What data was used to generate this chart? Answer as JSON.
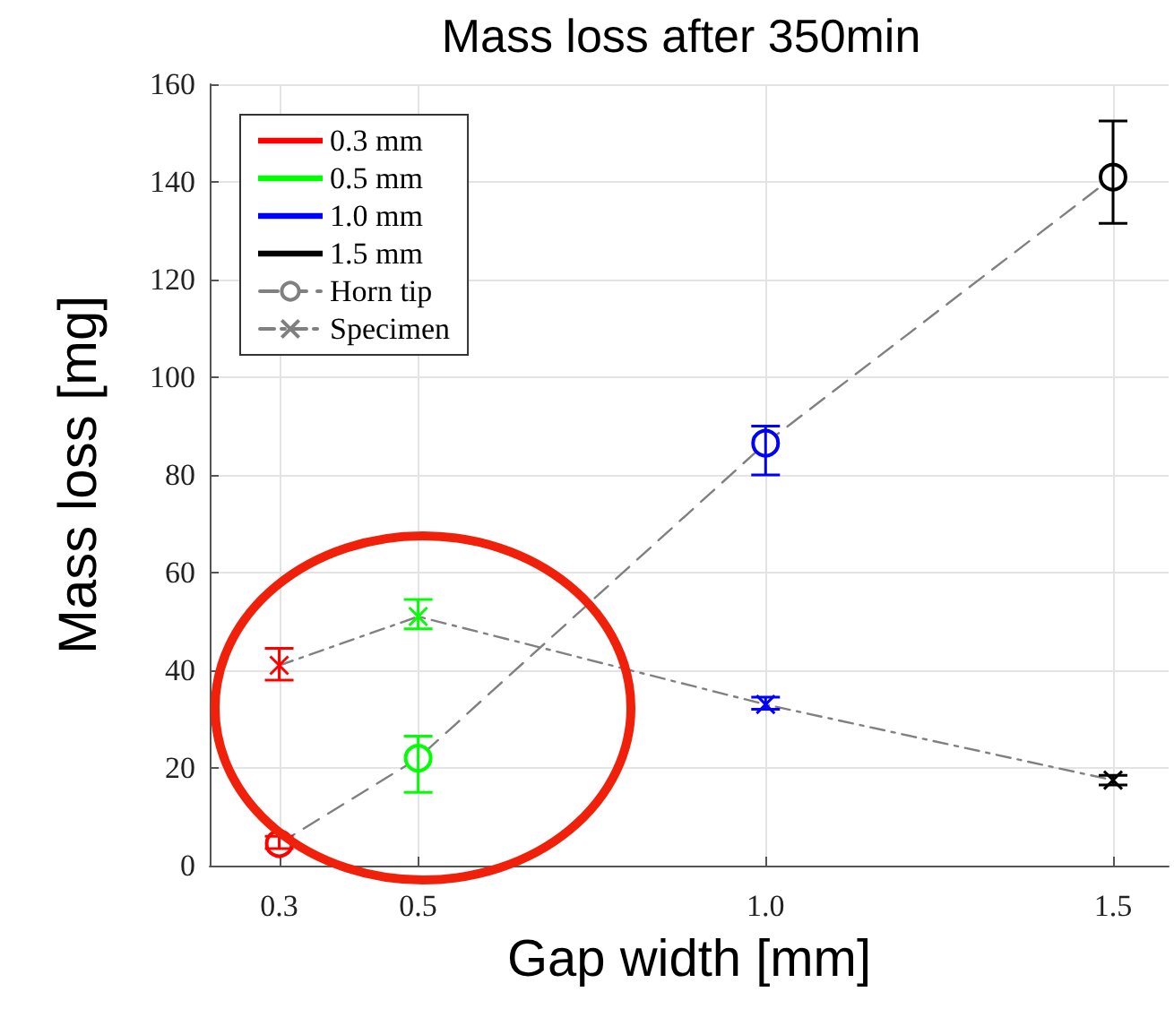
{
  "chart_data": {
    "type": "line",
    "title": "Mass loss after 350min",
    "xlabel": "Gap width [mm]",
    "ylabel": "Mass loss [mg]",
    "x": [
      0.3,
      0.5,
      1.0,
      1.5
    ],
    "series": [
      {
        "name": "0.3 mm",
        "color": "#ff0000",
        "values": [
          null,
          null,
          null,
          null
        ]
      },
      {
        "name": "0.5 mm",
        "color": "#00ff00",
        "values": [
          null,
          null,
          null,
          null
        ]
      },
      {
        "name": "1.0 mm",
        "color": "#0000ff",
        "values": [
          null,
          null,
          null,
          null
        ]
      },
      {
        "name": "1.5 mm",
        "color": "#000000",
        "values": [
          null,
          null,
          null,
          null
        ]
      },
      {
        "name": "Horn tip",
        "color": "#808080",
        "marker": "circle",
        "line_style": "dashed",
        "colors": [
          "#ff0000",
          "#00ff00",
          "#0000ff",
          "#000000"
        ],
        "values": [
          4.5,
          22,
          86.5,
          141
        ],
        "errors": [
          [
            3.5,
            6
          ],
          [
            15,
            26.5
          ],
          [
            80,
            90
          ],
          [
            131.5,
            152.5
          ]
        ]
      },
      {
        "name": "Specimen",
        "color": "#808080",
        "marker": "cross",
        "line_style": "dashdot",
        "colors": [
          "#ff0000",
          "#00ff00",
          "#0000ff",
          "#000000"
        ],
        "values": [
          41,
          51,
          33,
          17.5
        ],
        "errors": [
          [
            38,
            44.5
          ],
          [
            48.5,
            54.5
          ],
          [
            32,
            34.5
          ],
          [
            16.5,
            18.5
          ]
        ]
      }
    ],
    "xlim": [
      0.2,
      1.58
    ],
    "xticks": [
      {
        "value": 0.3,
        "label": "0.3"
      },
      {
        "value": 0.5,
        "label": "0.5"
      },
      {
        "value": 1.0,
        "label": "1.0"
      },
      {
        "value": 1.5,
        "label": "1.5"
      }
    ],
    "ylim": [
      0,
      160
    ],
    "yticks": [
      0,
      20,
      40,
      60,
      80,
      100,
      120,
      140,
      160
    ],
    "grid": true,
    "legend": "top left"
  }
}
